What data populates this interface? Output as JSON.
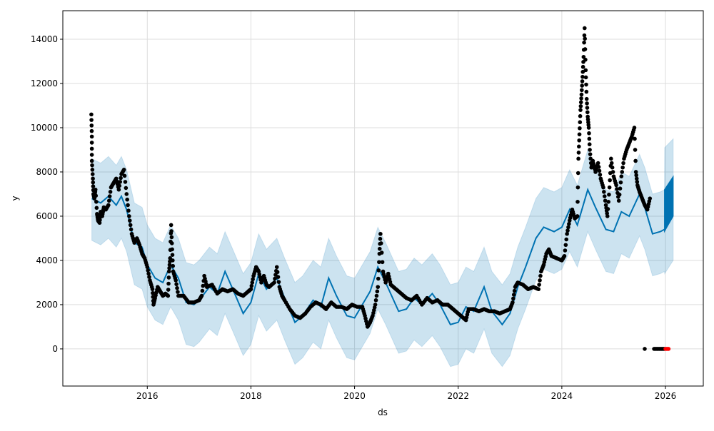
{
  "chart_data": {
    "type": "line",
    "title": "",
    "xlabel": "ds",
    "ylabel": "y",
    "xlim": [
      2014.37,
      2026.73
    ],
    "ylim": [
      -1680,
      15290
    ],
    "grid": true,
    "x_ticks": [
      {
        "v": 2016,
        "label": "2016"
      },
      {
        "v": 2018,
        "label": "2018"
      },
      {
        "v": 2020,
        "label": "2020"
      },
      {
        "v": 2022,
        "label": "2022"
      },
      {
        "v": 2024,
        "label": "2024"
      },
      {
        "v": 2026,
        "label": "2026"
      }
    ],
    "y_ticks": [
      {
        "v": 0,
        "label": "0"
      },
      {
        "v": 2000,
        "label": "2000"
      },
      {
        "v": 4000,
        "label": "4000"
      },
      {
        "v": 6000,
        "label": "6000"
      },
      {
        "v": 8000,
        "label": "8000"
      },
      {
        "v": 10000,
        "label": "10000"
      },
      {
        "v": 12000,
        "label": "12000"
      },
      {
        "v": 14000,
        "label": "14000"
      }
    ],
    "colors": {
      "forecast": "#0072B2",
      "band": "#0072B2",
      "observed": "#000000",
      "future_actual": "#ff0000",
      "grid": "#dddddd"
    },
    "yhat": [
      [
        2014.93,
        6800
      ],
      [
        2015.1,
        6600
      ],
      [
        2015.25,
        6900
      ],
      [
        2015.4,
        6500
      ],
      [
        2015.5,
        6900
      ],
      [
        2015.6,
        6300
      ],
      [
        2015.75,
        4800
      ],
      [
        2015.9,
        4600
      ],
      [
        2016.0,
        3800
      ],
      [
        2016.15,
        3200
      ],
      [
        2016.3,
        3000
      ],
      [
        2016.45,
        3800
      ],
      [
        2016.6,
        3200
      ],
      [
        2016.75,
        2100
      ],
      [
        2016.9,
        2000
      ],
      [
        2017.0,
        2200
      ],
      [
        2017.2,
        2800
      ],
      [
        2017.35,
        2500
      ],
      [
        2017.5,
        3500
      ],
      [
        2017.65,
        2700
      ],
      [
        2017.85,
        1600
      ],
      [
        2018.0,
        2100
      ],
      [
        2018.15,
        3400
      ],
      [
        2018.3,
        2700
      ],
      [
        2018.5,
        3200
      ],
      [
        2018.65,
        2300
      ],
      [
        2018.85,
        1200
      ],
      [
        2019.0,
        1500
      ],
      [
        2019.2,
        2200
      ],
      [
        2019.35,
        1900
      ],
      [
        2019.5,
        3200
      ],
      [
        2019.65,
        2400
      ],
      [
        2019.85,
        1500
      ],
      [
        2020.0,
        1400
      ],
      [
        2020.15,
        2000
      ],
      [
        2020.3,
        2600
      ],
      [
        2020.45,
        3700
      ],
      [
        2020.6,
        3000
      ],
      [
        2020.85,
        1700
      ],
      [
        2021.0,
        1800
      ],
      [
        2021.15,
        2300
      ],
      [
        2021.3,
        2000
      ],
      [
        2021.5,
        2500
      ],
      [
        2021.65,
        2000
      ],
      [
        2021.85,
        1100
      ],
      [
        2022.0,
        1200
      ],
      [
        2022.15,
        1900
      ],
      [
        2022.3,
        1700
      ],
      [
        2022.5,
        2800
      ],
      [
        2022.65,
        1700
      ],
      [
        2022.85,
        1100
      ],
      [
        2023.0,
        1600
      ],
      [
        2023.15,
        2800
      ],
      [
        2023.3,
        3700
      ],
      [
        2023.5,
        5000
      ],
      [
        2023.65,
        5500
      ],
      [
        2023.85,
        5300
      ],
      [
        2024.0,
        5500
      ],
      [
        2024.15,
        6300
      ],
      [
        2024.3,
        5600
      ],
      [
        2024.5,
        7200
      ],
      [
        2024.65,
        6400
      ],
      [
        2024.85,
        5400
      ],
      [
        2025.0,
        5300
      ],
      [
        2025.15,
        6200
      ],
      [
        2025.3,
        6000
      ],
      [
        2025.5,
        7000
      ],
      [
        2025.6,
        6400
      ],
      [
        2025.75,
        5200
      ],
      [
        2025.9,
        5300
      ],
      [
        2025.98,
        5400
      ]
    ],
    "forecast_future": {
      "start": 2025.98,
      "end": 2026.15,
      "yhat_upper_start": 7200,
      "yhat_upper_end": 7800,
      "yhat_lower_start": 5300,
      "yhat_lower_end": 6000,
      "band_upper_end": 9500,
      "band_lower_end": 4000
    },
    "band_offset_upper": 1800,
    "band_offset_lower": 1900,
    "observed": [
      [
        2014.92,
        10600
      ],
      [
        2014.93,
        9600
      ],
      [
        2014.93,
        8500
      ],
      [
        2014.95,
        7700
      ],
      [
        2014.96,
        7000
      ],
      [
        2014.98,
        6800
      ],
      [
        2015.0,
        7200
      ],
      [
        2015.03,
        6100
      ],
      [
        2015.05,
        5800
      ],
      [
        2015.08,
        5700
      ],
      [
        2015.1,
        6200
      ],
      [
        2015.13,
        6000
      ],
      [
        2015.16,
        6400
      ],
      [
        2015.2,
        6300
      ],
      [
        2015.25,
        6500
      ],
      [
        2015.3,
        7300
      ],
      [
        2015.35,
        7500
      ],
      [
        2015.4,
        7700
      ],
      [
        2015.45,
        7200
      ],
      [
        2015.5,
        7900
      ],
      [
        2015.55,
        8100
      ],
      [
        2015.6,
        7000
      ],
      [
        2015.65,
        6000
      ],
      [
        2015.7,
        5200
      ],
      [
        2015.75,
        4800
      ],
      [
        2015.8,
        5000
      ],
      [
        2015.85,
        4700
      ],
      [
        2015.9,
        4300
      ],
      [
        2015.95,
        4100
      ],
      [
        2016.0,
        3700
      ],
      [
        2016.05,
        3100
      ],
      [
        2016.1,
        2700
      ],
      [
        2016.12,
        2000
      ],
      [
        2016.15,
        2300
      ],
      [
        2016.2,
        2800
      ],
      [
        2016.25,
        2600
      ],
      [
        2016.3,
        2400
      ],
      [
        2016.35,
        2500
      ],
      [
        2016.4,
        2400
      ],
      [
        2016.42,
        3500
      ],
      [
        2016.44,
        4100
      ],
      [
        2016.46,
        5600
      ],
      [
        2016.48,
        4500
      ],
      [
        2016.5,
        3500
      ],
      [
        2016.55,
        3100
      ],
      [
        2016.6,
        2400
      ],
      [
        2016.7,
        2400
      ],
      [
        2016.8,
        2100
      ],
      [
        2016.9,
        2100
      ],
      [
        2017.0,
        2200
      ],
      [
        2017.05,
        2400
      ],
      [
        2017.1,
        3300
      ],
      [
        2017.15,
        2800
      ],
      [
        2017.25,
        2900
      ],
      [
        2017.35,
        2500
      ],
      [
        2017.45,
        2700
      ],
      [
        2017.55,
        2600
      ],
      [
        2017.65,
        2700
      ],
      [
        2017.75,
        2500
      ],
      [
        2017.85,
        2400
      ],
      [
        2017.95,
        2600
      ],
      [
        2018.0,
        2700
      ],
      [
        2018.05,
        3300
      ],
      [
        2018.1,
        3700
      ],
      [
        2018.15,
        3500
      ],
      [
        2018.2,
        3000
      ],
      [
        2018.25,
        3300
      ],
      [
        2018.3,
        2900
      ],
      [
        2018.35,
        2800
      ],
      [
        2018.45,
        3000
      ],
      [
        2018.5,
        3700
      ],
      [
        2018.55,
        2800
      ],
      [
        2018.6,
        2400
      ],
      [
        2018.65,
        2200
      ],
      [
        2018.75,
        1800
      ],
      [
        2018.85,
        1500
      ],
      [
        2018.95,
        1400
      ],
      [
        2019.05,
        1600
      ],
      [
        2019.15,
        1900
      ],
      [
        2019.25,
        2100
      ],
      [
        2019.35,
        2000
      ],
      [
        2019.45,
        1800
      ],
      [
        2019.55,
        2100
      ],
      [
        2019.65,
        1900
      ],
      [
        2019.75,
        1900
      ],
      [
        2019.85,
        1800
      ],
      [
        2019.95,
        2000
      ],
      [
        2020.05,
        1900
      ],
      [
        2020.15,
        1900
      ],
      [
        2020.2,
        1500
      ],
      [
        2020.25,
        1000
      ],
      [
        2020.3,
        1200
      ],
      [
        2020.35,
        1500
      ],
      [
        2020.4,
        2000
      ],
      [
        2020.45,
        2800
      ],
      [
        2020.48,
        4300
      ],
      [
        2020.5,
        5200
      ],
      [
        2020.55,
        3500
      ],
      [
        2020.6,
        3000
      ],
      [
        2020.65,
        3400
      ],
      [
        2020.7,
        2900
      ],
      [
        2020.8,
        2700
      ],
      [
        2020.9,
        2500
      ],
      [
        2021.0,
        2300
      ],
      [
        2021.1,
        2200
      ],
      [
        2021.2,
        2400
      ],
      [
        2021.3,
        2000
      ],
      [
        2021.4,
        2300
      ],
      [
        2021.5,
        2100
      ],
      [
        2021.6,
        2200
      ],
      [
        2021.7,
        2000
      ],
      [
        2021.8,
        2000
      ],
      [
        2021.9,
        1800
      ],
      [
        2022.0,
        1600
      ],
      [
        2022.1,
        1400
      ],
      [
        2022.15,
        1300
      ],
      [
        2022.2,
        1800
      ],
      [
        2022.3,
        1800
      ],
      [
        2022.4,
        1700
      ],
      [
        2022.5,
        1800
      ],
      [
        2022.6,
        1700
      ],
      [
        2022.7,
        1700
      ],
      [
        2022.8,
        1600
      ],
      [
        2022.9,
        1700
      ],
      [
        2023.0,
        1800
      ],
      [
        2023.05,
        2100
      ],
      [
        2023.1,
        2800
      ],
      [
        2023.15,
        3000
      ],
      [
        2023.25,
        2900
      ],
      [
        2023.35,
        2700
      ],
      [
        2023.45,
        2800
      ],
      [
        2023.55,
        2700
      ],
      [
        2023.6,
        3500
      ],
      [
        2023.65,
        3800
      ],
      [
        2023.7,
        4300
      ],
      [
        2023.75,
        4500
      ],
      [
        2023.8,
        4200
      ],
      [
        2023.9,
        4100
      ],
      [
        2024.0,
        4000
      ],
      [
        2024.05,
        4200
      ],
      [
        2024.1,
        5200
      ],
      [
        2024.15,
        5800
      ],
      [
        2024.2,
        6300
      ],
      [
        2024.25,
        5900
      ],
      [
        2024.3,
        6000
      ],
      [
        2024.32,
        8600
      ],
      [
        2024.34,
        9700
      ],
      [
        2024.36,
        10800
      ],
      [
        2024.38,
        11500
      ],
      [
        2024.4,
        12300
      ],
      [
        2024.42,
        13200
      ],
      [
        2024.44,
        14500
      ],
      [
        2024.46,
        12600
      ],
      [
        2024.48,
        11300
      ],
      [
        2024.5,
        10500
      ],
      [
        2024.52,
        10000
      ],
      [
        2024.54,
        9000
      ],
      [
        2024.57,
        8200
      ],
      [
        2024.6,
        8500
      ],
      [
        2024.65,
        8000
      ],
      [
        2024.7,
        8400
      ],
      [
        2024.75,
        7700
      ],
      [
        2024.8,
        7300
      ],
      [
        2024.85,
        6500
      ],
      [
        2024.88,
        6000
      ],
      [
        2024.92,
        7300
      ],
      [
        2024.95,
        8600
      ],
      [
        2025.0,
        7800
      ],
      [
        2025.05,
        7400
      ],
      [
        2025.1,
        6700
      ],
      [
        2025.15,
        7800
      ],
      [
        2025.2,
        8600
      ],
      [
        2025.25,
        9000
      ],
      [
        2025.3,
        9300
      ],
      [
        2025.35,
        9600
      ],
      [
        2025.4,
        10000
      ],
      [
        2025.43,
        8000
      ],
      [
        2025.46,
        7400
      ],
      [
        2025.5,
        7100
      ],
      [
        2025.55,
        6800
      ],
      [
        2025.6,
        6500
      ],
      [
        2025.65,
        6300
      ],
      [
        2025.7,
        6800
      ]
    ],
    "observed_zero": [
      [
        2025.6,
        0
      ],
      [
        2025.78,
        0
      ],
      [
        2025.8,
        0
      ],
      [
        2025.82,
        0
      ],
      [
        2025.84,
        0
      ],
      [
        2025.86,
        0
      ],
      [
        2025.88,
        0
      ],
      [
        2025.9,
        0
      ],
      [
        2025.92,
        0
      ],
      [
        2025.94,
        0
      ],
      [
        2025.96,
        0
      ],
      [
        2025.98,
        0
      ]
    ],
    "future_actual": [
      [
        2026.0,
        0
      ],
      [
        2026.02,
        0
      ],
      [
        2026.04,
        0
      ],
      [
        2026.06,
        0
      ]
    ]
  }
}
